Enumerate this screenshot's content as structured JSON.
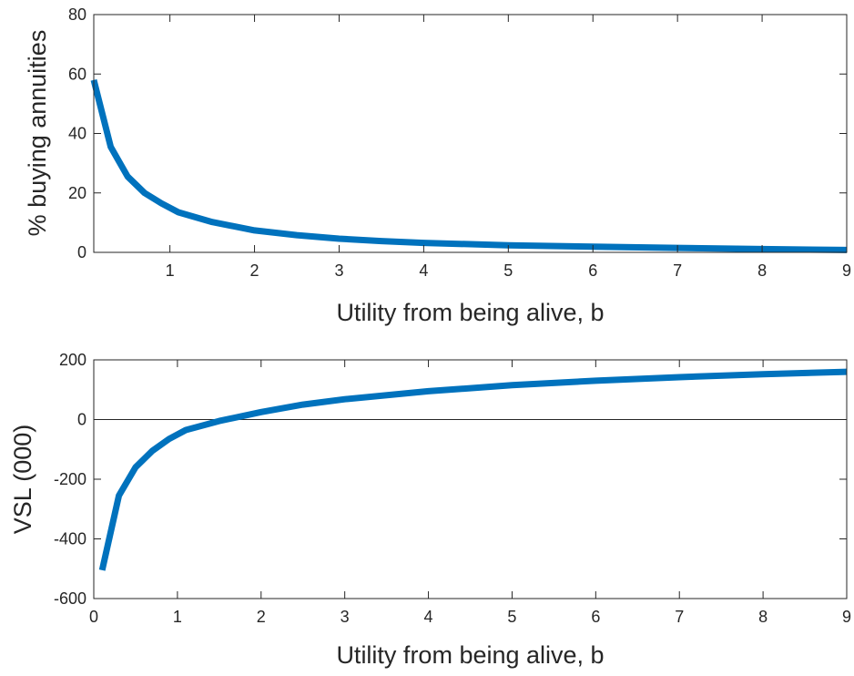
{
  "colors": {
    "line": "#0072BD",
    "axis": "#262626",
    "background": "#ffffff"
  },
  "chart_data": [
    {
      "type": "line",
      "xlabel": "Utility from being alive, b",
      "ylabel": "% buying annuities",
      "xlim": [
        0.1,
        9
      ],
      "ylim": [
        0,
        80
      ],
      "xticks": [
        1,
        2,
        3,
        4,
        5,
        6,
        7,
        8,
        9
      ],
      "yticks": [
        0,
        20,
        40,
        60,
        80
      ],
      "grid": false,
      "zero_line": false,
      "series": [
        {
          "x": [
            0.1,
            0.3,
            0.5,
            0.7,
            0.9,
            1.1,
            1.5,
            2,
            2.5,
            3,
            3.5,
            4,
            5,
            6,
            7,
            8,
            9
          ],
          "y": [
            58,
            35.5,
            25.5,
            20,
            16.5,
            13.5,
            10.2,
            7.4,
            5.8,
            4.6,
            3.8,
            3.2,
            2.4,
            1.9,
            1.5,
            1.1,
            0.8
          ]
        }
      ]
    },
    {
      "type": "line",
      "xlabel": "Utility from being alive, b",
      "ylabel": "VSL (000)",
      "xlim": [
        0,
        9
      ],
      "ylim": [
        -600,
        200
      ],
      "xticks": [
        0,
        1,
        2,
        3,
        4,
        5,
        6,
        7,
        8,
        9
      ],
      "yticks": [
        -600,
        -400,
        -200,
        0,
        200
      ],
      "grid": false,
      "zero_line": true,
      "series": [
        {
          "x": [
            0.1,
            0.3,
            0.5,
            0.7,
            0.9,
            1.1,
            1.5,
            2,
            2.5,
            3,
            4,
            5,
            6,
            7,
            8,
            9
          ],
          "y": [
            -505,
            -255,
            -160,
            -105,
            -65,
            -35,
            -5,
            25,
            50,
            68,
            95,
            115,
            130,
            142,
            152,
            160
          ]
        }
      ]
    }
  ]
}
